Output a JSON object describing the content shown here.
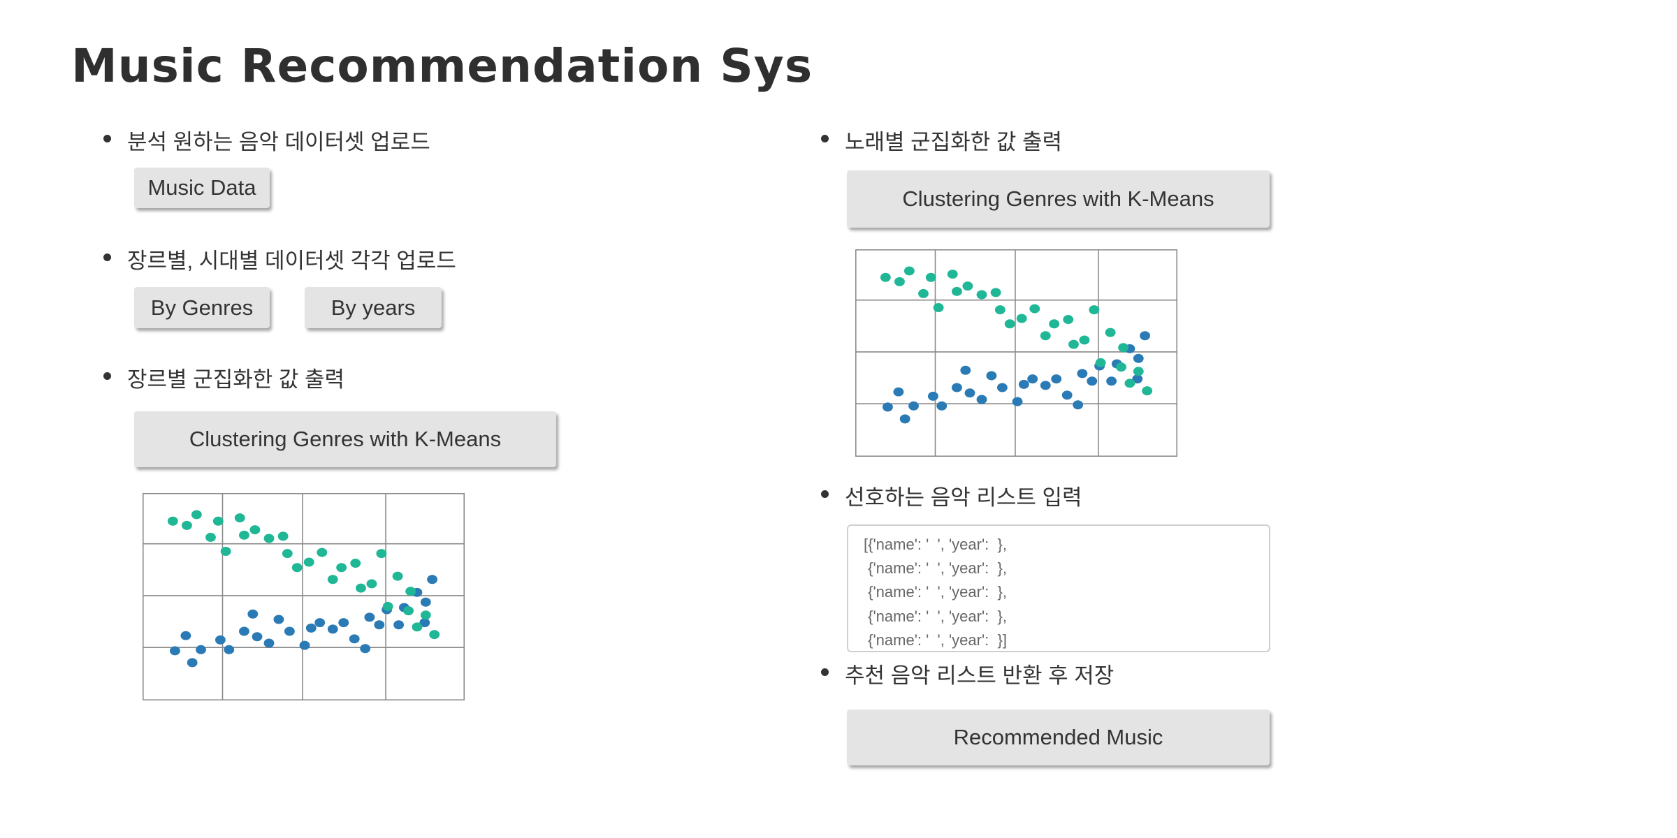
{
  "title": "Music Recommendation Sys",
  "left": {
    "items": [
      {
        "label": "분석 원하는 음악 데이터셋 업로드",
        "buttons": [
          "Music Data"
        ]
      },
      {
        "label": "장르별, 시대별 데이터셋 각각 업로드",
        "buttons": [
          "By Genres",
          "By years"
        ]
      },
      {
        "label": "장르별 군집화한 값 출력",
        "buttons": [
          "Clustering Genres with K-Means"
        ]
      }
    ]
  },
  "right": {
    "items": [
      {
        "label": "노래별 군집화한 값 출력",
        "buttons": [
          "Clustering Genres with K-Means"
        ]
      },
      {
        "label": "선호하는 음악 리스트 입력",
        "textarea": [
          "[{'name': '  ', 'year':  },",
          " {'name': '  ', 'year':  },",
          " {'name': '  ', 'year':  },",
          " {'name': '  ', 'year':  },",
          " {'name': '  ', 'year':  }]"
        ]
      },
      {
        "label": "추천 음악 리스트 반환 후 저장",
        "buttons": [
          "Recommended Music"
        ]
      }
    ]
  }
}
